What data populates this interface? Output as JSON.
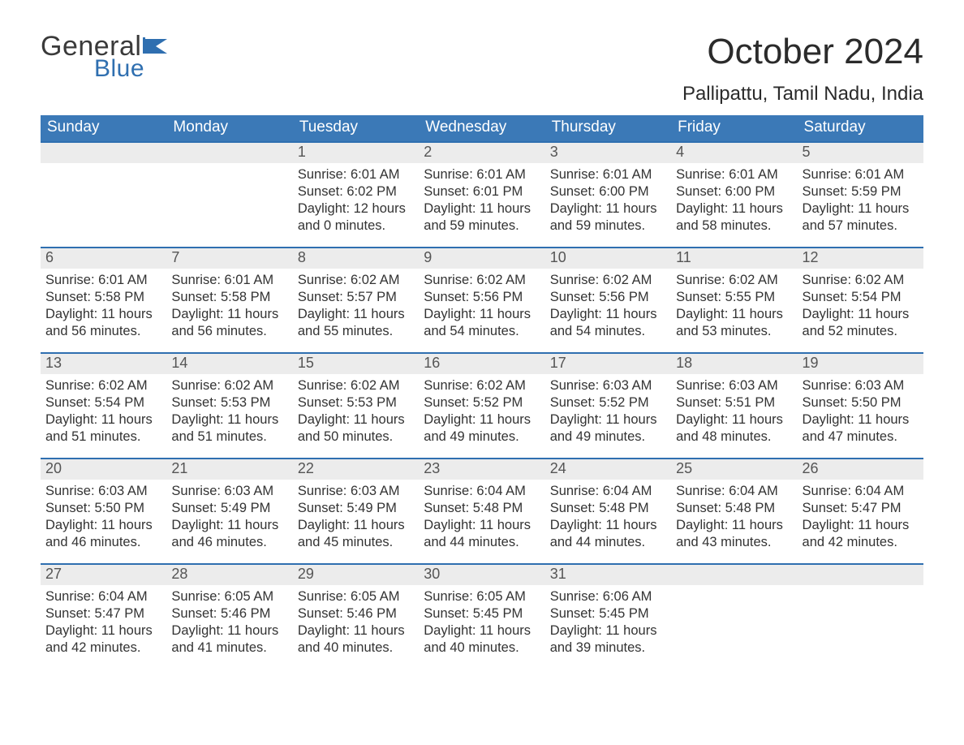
{
  "logo": {
    "word1": "General",
    "word2": "Blue"
  },
  "title": "October 2024",
  "location": "Pallipattu, Tamil Nadu, India",
  "colors": {
    "header_bg": "#3b79b7",
    "accent": "#2f6fb0",
    "daynum_bg": "#ececec",
    "text": "#333333",
    "page_bg": "#ffffff"
  },
  "typography": {
    "title_fontsize": 44,
    "location_fontsize": 24,
    "header_fontsize": 19,
    "daynum_fontsize": 18,
    "body_fontsize": 16.5,
    "font_family": "Segoe UI"
  },
  "layout": {
    "columns": 7,
    "rows": 5,
    "first_weekday": "Sunday"
  },
  "weekdays": [
    "Sunday",
    "Monday",
    "Tuesday",
    "Wednesday",
    "Thursday",
    "Friday",
    "Saturday"
  ],
  "weeks": [
    [
      null,
      null,
      {
        "n": "1",
        "sunrise": "Sunrise: 6:01 AM",
        "sunset": "Sunset: 6:02 PM",
        "daylight": "Daylight: 12 hours and 0 minutes."
      },
      {
        "n": "2",
        "sunrise": "Sunrise: 6:01 AM",
        "sunset": "Sunset: 6:01 PM",
        "daylight": "Daylight: 11 hours and 59 minutes."
      },
      {
        "n": "3",
        "sunrise": "Sunrise: 6:01 AM",
        "sunset": "Sunset: 6:00 PM",
        "daylight": "Daylight: 11 hours and 59 minutes."
      },
      {
        "n": "4",
        "sunrise": "Sunrise: 6:01 AM",
        "sunset": "Sunset: 6:00 PM",
        "daylight": "Daylight: 11 hours and 58 minutes."
      },
      {
        "n": "5",
        "sunrise": "Sunrise: 6:01 AM",
        "sunset": "Sunset: 5:59 PM",
        "daylight": "Daylight: 11 hours and 57 minutes."
      }
    ],
    [
      {
        "n": "6",
        "sunrise": "Sunrise: 6:01 AM",
        "sunset": "Sunset: 5:58 PM",
        "daylight": "Daylight: 11 hours and 56 minutes."
      },
      {
        "n": "7",
        "sunrise": "Sunrise: 6:01 AM",
        "sunset": "Sunset: 5:58 PM",
        "daylight": "Daylight: 11 hours and 56 minutes."
      },
      {
        "n": "8",
        "sunrise": "Sunrise: 6:02 AM",
        "sunset": "Sunset: 5:57 PM",
        "daylight": "Daylight: 11 hours and 55 minutes."
      },
      {
        "n": "9",
        "sunrise": "Sunrise: 6:02 AM",
        "sunset": "Sunset: 5:56 PM",
        "daylight": "Daylight: 11 hours and 54 minutes."
      },
      {
        "n": "10",
        "sunrise": "Sunrise: 6:02 AM",
        "sunset": "Sunset: 5:56 PM",
        "daylight": "Daylight: 11 hours and 54 minutes."
      },
      {
        "n": "11",
        "sunrise": "Sunrise: 6:02 AM",
        "sunset": "Sunset: 5:55 PM",
        "daylight": "Daylight: 11 hours and 53 minutes."
      },
      {
        "n": "12",
        "sunrise": "Sunrise: 6:02 AM",
        "sunset": "Sunset: 5:54 PM",
        "daylight": "Daylight: 11 hours and 52 minutes."
      }
    ],
    [
      {
        "n": "13",
        "sunrise": "Sunrise: 6:02 AM",
        "sunset": "Sunset: 5:54 PM",
        "daylight": "Daylight: 11 hours and 51 minutes."
      },
      {
        "n": "14",
        "sunrise": "Sunrise: 6:02 AM",
        "sunset": "Sunset: 5:53 PM",
        "daylight": "Daylight: 11 hours and 51 minutes."
      },
      {
        "n": "15",
        "sunrise": "Sunrise: 6:02 AM",
        "sunset": "Sunset: 5:53 PM",
        "daylight": "Daylight: 11 hours and 50 minutes."
      },
      {
        "n": "16",
        "sunrise": "Sunrise: 6:02 AM",
        "sunset": "Sunset: 5:52 PM",
        "daylight": "Daylight: 11 hours and 49 minutes."
      },
      {
        "n": "17",
        "sunrise": "Sunrise: 6:03 AM",
        "sunset": "Sunset: 5:52 PM",
        "daylight": "Daylight: 11 hours and 49 minutes."
      },
      {
        "n": "18",
        "sunrise": "Sunrise: 6:03 AM",
        "sunset": "Sunset: 5:51 PM",
        "daylight": "Daylight: 11 hours and 48 minutes."
      },
      {
        "n": "19",
        "sunrise": "Sunrise: 6:03 AM",
        "sunset": "Sunset: 5:50 PM",
        "daylight": "Daylight: 11 hours and 47 minutes."
      }
    ],
    [
      {
        "n": "20",
        "sunrise": "Sunrise: 6:03 AM",
        "sunset": "Sunset: 5:50 PM",
        "daylight": "Daylight: 11 hours and 46 minutes."
      },
      {
        "n": "21",
        "sunrise": "Sunrise: 6:03 AM",
        "sunset": "Sunset: 5:49 PM",
        "daylight": "Daylight: 11 hours and 46 minutes."
      },
      {
        "n": "22",
        "sunrise": "Sunrise: 6:03 AM",
        "sunset": "Sunset: 5:49 PM",
        "daylight": "Daylight: 11 hours and 45 minutes."
      },
      {
        "n": "23",
        "sunrise": "Sunrise: 6:04 AM",
        "sunset": "Sunset: 5:48 PM",
        "daylight": "Daylight: 11 hours and 44 minutes."
      },
      {
        "n": "24",
        "sunrise": "Sunrise: 6:04 AM",
        "sunset": "Sunset: 5:48 PM",
        "daylight": "Daylight: 11 hours and 44 minutes."
      },
      {
        "n": "25",
        "sunrise": "Sunrise: 6:04 AM",
        "sunset": "Sunset: 5:48 PM",
        "daylight": "Daylight: 11 hours and 43 minutes."
      },
      {
        "n": "26",
        "sunrise": "Sunrise: 6:04 AM",
        "sunset": "Sunset: 5:47 PM",
        "daylight": "Daylight: 11 hours and 42 minutes."
      }
    ],
    [
      {
        "n": "27",
        "sunrise": "Sunrise: 6:04 AM",
        "sunset": "Sunset: 5:47 PM",
        "daylight": "Daylight: 11 hours and 42 minutes."
      },
      {
        "n": "28",
        "sunrise": "Sunrise: 6:05 AM",
        "sunset": "Sunset: 5:46 PM",
        "daylight": "Daylight: 11 hours and 41 minutes."
      },
      {
        "n": "29",
        "sunrise": "Sunrise: 6:05 AM",
        "sunset": "Sunset: 5:46 PM",
        "daylight": "Daylight: 11 hours and 40 minutes."
      },
      {
        "n": "30",
        "sunrise": "Sunrise: 6:05 AM",
        "sunset": "Sunset: 5:45 PM",
        "daylight": "Daylight: 11 hours and 40 minutes."
      },
      {
        "n": "31",
        "sunrise": "Sunrise: 6:06 AM",
        "sunset": "Sunset: 5:45 PM",
        "daylight": "Daylight: 11 hours and 39 minutes."
      },
      null,
      null
    ]
  ]
}
